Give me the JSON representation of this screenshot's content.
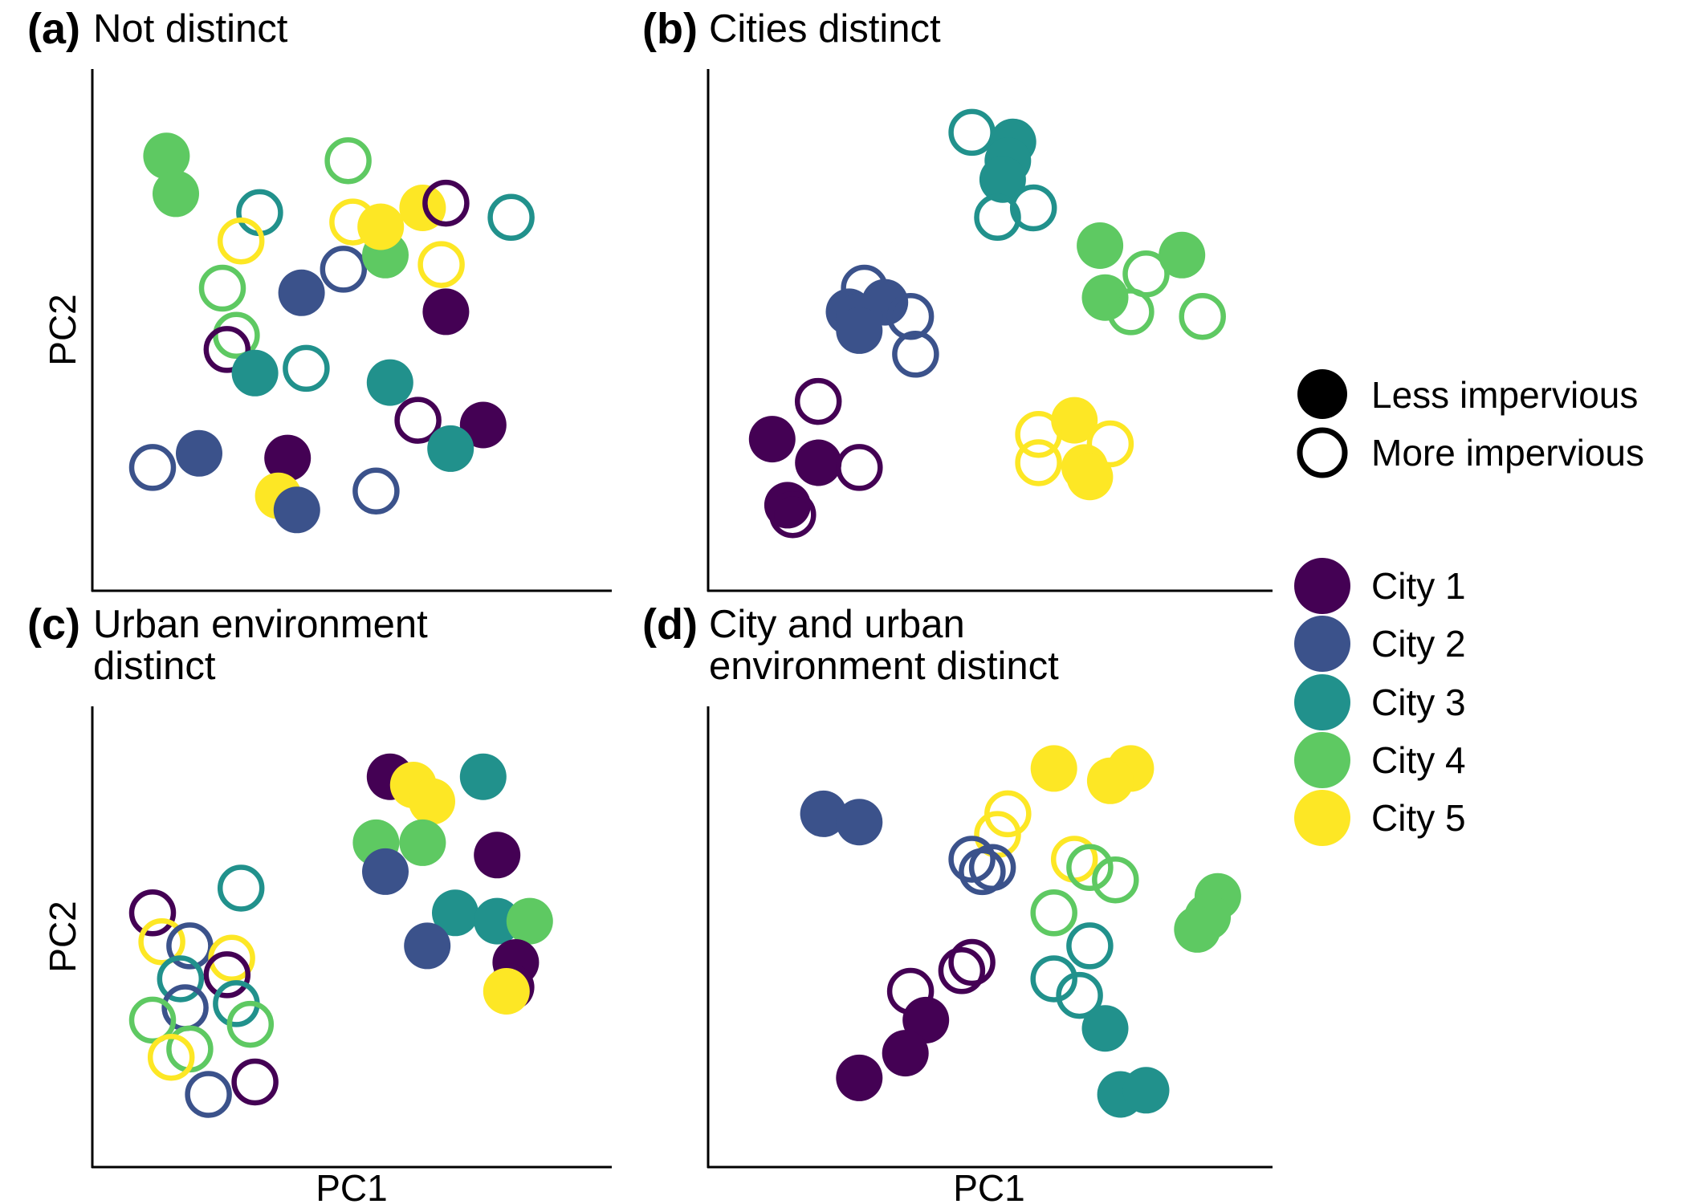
{
  "colors": {
    "City 1": "#440154",
    "City 2": "#3b528b",
    "City 3": "#21918c",
    "City 4": "#5ec962",
    "City 5": "#fde725"
  },
  "legend": {
    "shape": [
      {
        "label": "Less impervious",
        "style": "filled"
      },
      {
        "label": "More impervious",
        "style": "open"
      }
    ],
    "city": [
      "City 1",
      "City 2",
      "City 3",
      "City 4",
      "City 5"
    ]
  },
  "chart_data": [
    {
      "type": "scatter",
      "tag": "(a)",
      "title": [
        "Not distinct"
      ],
      "xlabel": "",
      "ylabel": "PC2",
      "xlim": [
        0,
        100
      ],
      "ylim": [
        0,
        100
      ],
      "points": [
        {
          "city": "City 4",
          "x": 13,
          "y": 86,
          "style": "filled"
        },
        {
          "city": "City 4",
          "x": 15,
          "y": 78,
          "style": "filled"
        },
        {
          "city": "City 3",
          "x": 33,
          "y": 74,
          "style": "open"
        },
        {
          "city": "City 5",
          "x": 29,
          "y": 68,
          "style": "open"
        },
        {
          "city": "City 4",
          "x": 25,
          "y": 58,
          "style": "open"
        },
        {
          "city": "City 4",
          "x": 28,
          "y": 48,
          "style": "open"
        },
        {
          "city": "City 1",
          "x": 26,
          "y": 45,
          "style": "open"
        },
        {
          "city": "City 3",
          "x": 32,
          "y": 40,
          "style": "filled"
        },
        {
          "city": "City 2",
          "x": 42,
          "y": 57,
          "style": "filled"
        },
        {
          "city": "City 3",
          "x": 43,
          "y": 41,
          "style": "open"
        },
        {
          "city": "City 4",
          "x": 52,
          "y": 85,
          "style": "open"
        },
        {
          "city": "City 5",
          "x": 53,
          "y": 72,
          "style": "open"
        },
        {
          "city": "City 2",
          "x": 51,
          "y": 62,
          "style": "open"
        },
        {
          "city": "City 4",
          "x": 60,
          "y": 65,
          "style": "filled"
        },
        {
          "city": "City 5",
          "x": 59,
          "y": 71,
          "style": "filled"
        },
        {
          "city": "City 5",
          "x": 68,
          "y": 75,
          "style": "filled"
        },
        {
          "city": "City 1",
          "x": 73,
          "y": 76,
          "style": "open"
        },
        {
          "city": "City 5",
          "x": 72,
          "y": 63,
          "style": "open"
        },
        {
          "city": "City 3",
          "x": 87,
          "y": 73,
          "style": "open"
        },
        {
          "city": "City 1",
          "x": 73,
          "y": 53,
          "style": "filled"
        },
        {
          "city": "City 3",
          "x": 61,
          "y": 38,
          "style": "filled"
        },
        {
          "city": "City 1",
          "x": 67,
          "y": 30,
          "style": "open"
        },
        {
          "city": "City 1",
          "x": 81,
          "y": 29,
          "style": "filled"
        },
        {
          "city": "City 3",
          "x": 74,
          "y": 24,
          "style": "filled"
        },
        {
          "city": "City 2",
          "x": 20,
          "y": 23,
          "style": "filled"
        },
        {
          "city": "City 2",
          "x": 10,
          "y": 20,
          "style": "open"
        },
        {
          "city": "City 1",
          "x": 39,
          "y": 22,
          "style": "filled"
        },
        {
          "city": "City 5",
          "x": 37,
          "y": 14,
          "style": "filled"
        },
        {
          "city": "City 2",
          "x": 41,
          "y": 11,
          "style": "filled"
        },
        {
          "city": "City 2",
          "x": 58,
          "y": 15,
          "style": "open"
        }
      ]
    },
    {
      "type": "scatter",
      "tag": "(b)",
      "title": [
        "Cities distinct"
      ],
      "xlabel": "",
      "ylabel": "",
      "xlim": [
        0,
        100
      ],
      "ylim": [
        0,
        100
      ],
      "points": [
        {
          "city": "City 3",
          "x": 49,
          "y": 91,
          "style": "open"
        },
        {
          "city": "City 3",
          "x": 57,
          "y": 89,
          "style": "filled"
        },
        {
          "city": "City 3",
          "x": 56,
          "y": 85,
          "style": "filled"
        },
        {
          "city": "City 3",
          "x": 55,
          "y": 81,
          "style": "filled"
        },
        {
          "city": "City 3",
          "x": 61,
          "y": 75,
          "style": "open"
        },
        {
          "city": "City 3",
          "x": 54,
          "y": 73,
          "style": "open"
        },
        {
          "city": "City 4",
          "x": 74,
          "y": 67,
          "style": "filled"
        },
        {
          "city": "City 4",
          "x": 90,
          "y": 65,
          "style": "filled"
        },
        {
          "city": "City 4",
          "x": 83,
          "y": 61,
          "style": "open"
        },
        {
          "city": "City 4",
          "x": 75,
          "y": 56,
          "style": "filled"
        },
        {
          "city": "City 4",
          "x": 80,
          "y": 53,
          "style": "open"
        },
        {
          "city": "City 4",
          "x": 94,
          "y": 52,
          "style": "open"
        },
        {
          "city": "City 2",
          "x": 28,
          "y": 58,
          "style": "open"
        },
        {
          "city": "City 2",
          "x": 32,
          "y": 55,
          "style": "filled"
        },
        {
          "city": "City 2",
          "x": 25,
          "y": 53,
          "style": "filled"
        },
        {
          "city": "City 2",
          "x": 27,
          "y": 52,
          "style": "filled"
        },
        {
          "city": "City 2",
          "x": 37,
          "y": 52,
          "style": "open"
        },
        {
          "city": "City 2",
          "x": 27,
          "y": 49,
          "style": "filled"
        },
        {
          "city": "City 2",
          "x": 38,
          "y": 44,
          "style": "open"
        },
        {
          "city": "City 1",
          "x": 19,
          "y": 34,
          "style": "open"
        },
        {
          "city": "City 1",
          "x": 10,
          "y": 26,
          "style": "filled"
        },
        {
          "city": "City 1",
          "x": 19,
          "y": 21,
          "style": "filled"
        },
        {
          "city": "City 1",
          "x": 27,
          "y": 20,
          "style": "open"
        },
        {
          "city": "City 1",
          "x": 13,
          "y": 12,
          "style": "filled"
        },
        {
          "city": "City 1",
          "x": 14,
          "y": 10,
          "style": "open"
        },
        {
          "city": "City 5",
          "x": 69,
          "y": 30,
          "style": "filled"
        },
        {
          "city": "City 5",
          "x": 62,
          "y": 27,
          "style": "open"
        },
        {
          "city": "City 5",
          "x": 76,
          "y": 25,
          "style": "open"
        },
        {
          "city": "City 5",
          "x": 62,
          "y": 21,
          "style": "open"
        },
        {
          "city": "City 5",
          "x": 71,
          "y": 20,
          "style": "filled"
        },
        {
          "city": "City 5",
          "x": 72,
          "y": 18,
          "style": "filled"
        }
      ]
    },
    {
      "type": "scatter",
      "tag": "(c)",
      "title": [
        "Urban environment",
        "distinct"
      ],
      "xlabel": "PC1",
      "ylabel": "PC2",
      "xlim": [
        0,
        100
      ],
      "ylim": [
        0,
        100
      ],
      "points": [
        {
          "city": "City 1",
          "x": 61,
          "y": 88,
          "style": "filled"
        },
        {
          "city": "City 5",
          "x": 66,
          "y": 86,
          "style": "filled"
        },
        {
          "city": "City 5",
          "x": 70,
          "y": 82,
          "style": "filled"
        },
        {
          "city": "City 3",
          "x": 81,
          "y": 88,
          "style": "filled"
        },
        {
          "city": "City 4",
          "x": 58,
          "y": 72,
          "style": "filled"
        },
        {
          "city": "City 4",
          "x": 68,
          "y": 72,
          "style": "filled"
        },
        {
          "city": "City 1",
          "x": 84,
          "y": 69,
          "style": "filled"
        },
        {
          "city": "City 2",
          "x": 60,
          "y": 65,
          "style": "filled"
        },
        {
          "city": "City 3",
          "x": 75,
          "y": 55,
          "style": "filled"
        },
        {
          "city": "City 3",
          "x": 84,
          "y": 53,
          "style": "filled"
        },
        {
          "city": "City 4",
          "x": 91,
          "y": 53,
          "style": "filled"
        },
        {
          "city": "City 2",
          "x": 69,
          "y": 47,
          "style": "filled"
        },
        {
          "city": "City 1",
          "x": 88,
          "y": 43,
          "style": "filled"
        },
        {
          "city": "City 1",
          "x": 87,
          "y": 37,
          "style": "filled"
        },
        {
          "city": "City 5",
          "x": 86,
          "y": 36,
          "style": "filled"
        },
        {
          "city": "City 3",
          "x": 29,
          "y": 61,
          "style": "open"
        },
        {
          "city": "City 1",
          "x": 10,
          "y": 55,
          "style": "open"
        },
        {
          "city": "City 5",
          "x": 12,
          "y": 48,
          "style": "open"
        },
        {
          "city": "City 2",
          "x": 18,
          "y": 47,
          "style": "open"
        },
        {
          "city": "City 5",
          "x": 27,
          "y": 44,
          "style": "open"
        },
        {
          "city": "City 1",
          "x": 26,
          "y": 40,
          "style": "open"
        },
        {
          "city": "City 3",
          "x": 16,
          "y": 39,
          "style": "open"
        },
        {
          "city": "City 3",
          "x": 28,
          "y": 33,
          "style": "open"
        },
        {
          "city": "City 2",
          "x": 17,
          "y": 32,
          "style": "open"
        },
        {
          "city": "City 4",
          "x": 10,
          "y": 29,
          "style": "open"
        },
        {
          "city": "City 4",
          "x": 31,
          "y": 28,
          "style": "open"
        },
        {
          "city": "City 4",
          "x": 18,
          "y": 22,
          "style": "open"
        },
        {
          "city": "City 5",
          "x": 14,
          "y": 20,
          "style": "open"
        },
        {
          "city": "City 1",
          "x": 32,
          "y": 14,
          "style": "open"
        },
        {
          "city": "City 2",
          "x": 22,
          "y": 11,
          "style": "open"
        }
      ]
    },
    {
      "type": "scatter",
      "tag": "(d)",
      "title": [
        "City and urban",
        "environment distinct"
      ],
      "xlabel": "PC1",
      "ylabel": "",
      "xlim": [
        0,
        100
      ],
      "ylim": [
        0,
        100
      ],
      "points": [
        {
          "city": "City 5",
          "x": 65,
          "y": 90,
          "style": "filled"
        },
        {
          "city": "City 5",
          "x": 80,
          "y": 90,
          "style": "filled"
        },
        {
          "city": "City 5",
          "x": 76,
          "y": 87,
          "style": "filled"
        },
        {
          "city": "City 2",
          "x": 20,
          "y": 79,
          "style": "filled"
        },
        {
          "city": "City 2",
          "x": 27,
          "y": 77,
          "style": "filled"
        },
        {
          "city": "City 5",
          "x": 56,
          "y": 79,
          "style": "open"
        },
        {
          "city": "City 5",
          "x": 54,
          "y": 74,
          "style": "open"
        },
        {
          "city": "City 5",
          "x": 69,
          "y": 68,
          "style": "open"
        },
        {
          "city": "City 2",
          "x": 49,
          "y": 68,
          "style": "open"
        },
        {
          "city": "City 2",
          "x": 51,
          "y": 65,
          "style": "open"
        },
        {
          "city": "City 2",
          "x": 53,
          "y": 66,
          "style": "open"
        },
        {
          "city": "City 4",
          "x": 72,
          "y": 66,
          "style": "open"
        },
        {
          "city": "City 4",
          "x": 77,
          "y": 63,
          "style": "open"
        },
        {
          "city": "City 4",
          "x": 65,
          "y": 55,
          "style": "open"
        },
        {
          "city": "City 4",
          "x": 97,
          "y": 59,
          "style": "filled"
        },
        {
          "city": "City 4",
          "x": 95,
          "y": 54,
          "style": "filled"
        },
        {
          "city": "City 4",
          "x": 93,
          "y": 51,
          "style": "filled"
        },
        {
          "city": "City 3",
          "x": 72,
          "y": 47,
          "style": "open"
        },
        {
          "city": "City 3",
          "x": 65,
          "y": 39,
          "style": "open"
        },
        {
          "city": "City 3",
          "x": 70,
          "y": 35,
          "style": "open"
        },
        {
          "city": "City 3",
          "x": 75,
          "y": 27,
          "style": "filled"
        },
        {
          "city": "City 3",
          "x": 78,
          "y": 11,
          "style": "filled"
        },
        {
          "city": "City 3",
          "x": 83,
          "y": 12,
          "style": "filled"
        },
        {
          "city": "City 1",
          "x": 49,
          "y": 43,
          "style": "open"
        },
        {
          "city": "City 1",
          "x": 47,
          "y": 41,
          "style": "open"
        },
        {
          "city": "City 1",
          "x": 37,
          "y": 36,
          "style": "open"
        },
        {
          "city": "City 1",
          "x": 40,
          "y": 29,
          "style": "filled"
        },
        {
          "city": "City 1",
          "x": 36,
          "y": 21,
          "style": "filled"
        },
        {
          "city": "City 1",
          "x": 27,
          "y": 15,
          "style": "filled"
        }
      ]
    }
  ]
}
